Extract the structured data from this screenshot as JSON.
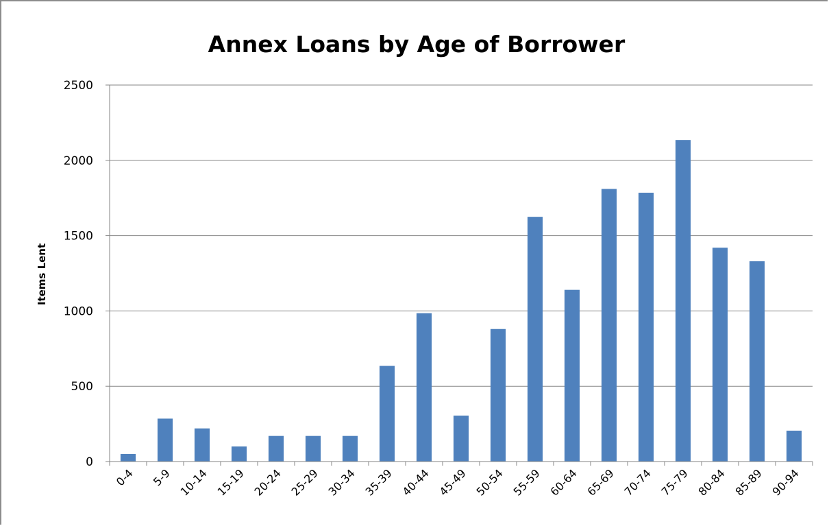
{
  "chart_data": {
    "type": "bar",
    "title": "Annex Loans by Age of Borrower",
    "xlabel": "",
    "ylabel": "Items Lent",
    "ylim": [
      0,
      2500
    ],
    "yticks": [
      "0",
      "500",
      "1000",
      "1500",
      "2000",
      "2500"
    ],
    "grid": true,
    "legend": "none",
    "bar_color": "#4f81bd",
    "categories": [
      "0-4",
      "5-9",
      "10-14",
      "15-19",
      "20-24",
      "25-29",
      "30-34",
      "35-39",
      "40-44",
      "45-49",
      "50-54",
      "55-59",
      "60-64",
      "65-69",
      "70-74",
      "75-79",
      "80-84",
      "85-89",
      "90-94"
    ],
    "values": [
      50,
      285,
      220,
      100,
      170,
      170,
      170,
      635,
      985,
      305,
      880,
      1625,
      1140,
      1810,
      1785,
      2135,
      1420,
      1330,
      205
    ]
  }
}
